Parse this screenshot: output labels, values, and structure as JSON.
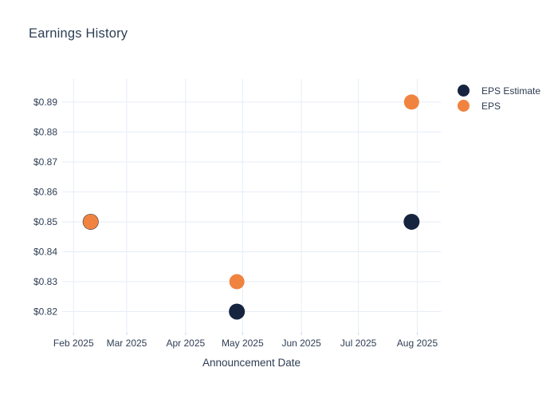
{
  "chart_data": {
    "type": "scatter",
    "title": "Earnings History",
    "xlabel": "Announcement Date",
    "x_axis": {
      "unit": "days since 2025-02-01",
      "range": [
        -6,
        193.4
      ],
      "ticks": [
        {
          "pos": 0,
          "label": "Feb 2025"
        },
        {
          "pos": 28,
          "label": "Mar 2025"
        },
        {
          "pos": 59,
          "label": "Apr 2025"
        },
        {
          "pos": 89,
          "label": "May 2025"
        },
        {
          "pos": 120,
          "label": "Jun 2025"
        },
        {
          "pos": 150,
          "label": "Jul 2025"
        },
        {
          "pos": 181,
          "label": "Aug 2025"
        }
      ]
    },
    "y_axis": {
      "range": [
        0.8132,
        0.8977
      ],
      "ticks": [
        {
          "value": 0.82,
          "label": "$0.82"
        },
        {
          "value": 0.83,
          "label": "$0.83"
        },
        {
          "value": 0.84,
          "label": "$0.84"
        },
        {
          "value": 0.85,
          "label": "$0.85"
        },
        {
          "value": 0.86,
          "label": "$0.86"
        },
        {
          "value": 0.87,
          "label": "$0.87"
        },
        {
          "value": 0.88,
          "label": "$0.88"
        },
        {
          "value": 0.89,
          "label": "$0.89"
        }
      ]
    },
    "series": [
      {
        "name": "EPS Estimate",
        "color": "#16243f",
        "points": [
          {
            "x": 9,
            "date_approx": "2025-02-10",
            "y": 0.85
          },
          {
            "x": 86,
            "date_approx": "2025-04-28",
            "y": 0.82
          },
          {
            "x": 178,
            "date_approx": "2025-07-29",
            "y": 0.85
          }
        ]
      },
      {
        "name": "EPS",
        "color": "#f0833f",
        "points": [
          {
            "x": 9,
            "date_approx": "2025-02-10",
            "y": 0.85
          },
          {
            "x": 86,
            "date_approx": "2025-04-28",
            "y": 0.83
          },
          {
            "x": 178,
            "date_approx": "2025-07-29",
            "y": 0.89
          }
        ]
      }
    ],
    "grid": true,
    "grid_color": "#e6edf7",
    "legend_position": "right-top-outside",
    "marker_radius": 9.5,
    "text_color": "#2f3e55",
    "title_color": "#2d3e54"
  }
}
